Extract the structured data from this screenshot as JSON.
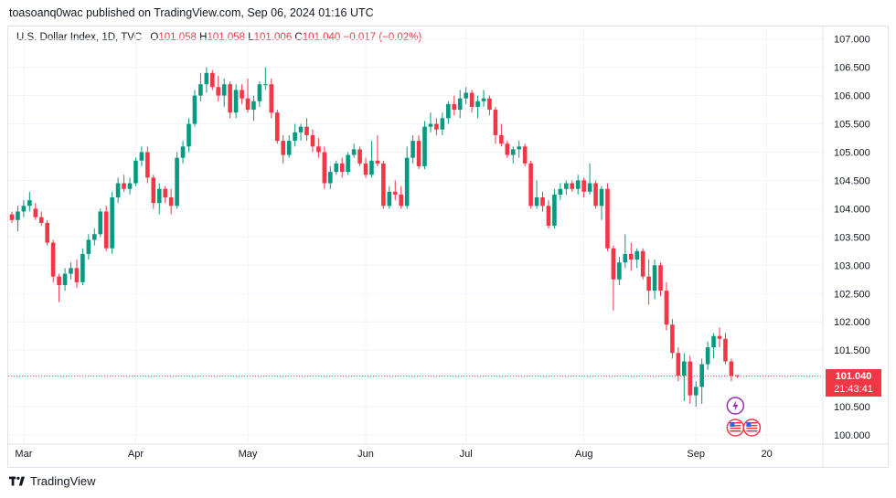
{
  "header": {
    "published": "toasoanq0wac published on TradingView.com, Sep 06, 2024 01:16 UTC"
  },
  "legend": {
    "symbol": "U.S. Dollar Index, 1D, TVC",
    "o_label": "O",
    "o": "101.058",
    "h_label": "H",
    "h": "101.058",
    "l_label": "L",
    "l": "101.006",
    "c_label": "C",
    "c": "101.040",
    "change": "−0.017 (−0.02%)"
  },
  "price_tag": {
    "price": "101.040",
    "countdown": "21:43:41"
  },
  "footer": {
    "brand": "TradingView"
  },
  "colors": {
    "up": "#089981",
    "down": "#f23645",
    "grid": "#f0f3fa",
    "text": "#131722"
  },
  "chart_data": {
    "type": "candlestick",
    "title": "U.S. Dollar Index, 1D, TVC",
    "ylim": [
      99.85,
      107.25
    ],
    "y_ticks": [
      "107.000",
      "106.500",
      "106.000",
      "105.500",
      "105.000",
      "104.500",
      "104.000",
      "103.500",
      "103.000",
      "102.500",
      "102.000",
      "101.500",
      "101.000",
      "100.500",
      "100.000"
    ],
    "x_ticks": [
      {
        "label": "Mar",
        "index": 2
      },
      {
        "label": "Apr",
        "index": 21
      },
      {
        "label": "May",
        "index": 40
      },
      {
        "label": "Jun",
        "index": 60
      },
      {
        "label": "Jul",
        "index": 77
      },
      {
        "label": "Aug",
        "index": 97
      },
      {
        "label": "Sep",
        "index": 116
      },
      {
        "label": "20",
        "index": 128
      }
    ],
    "last_price": 101.04,
    "candles": [
      [
        103.9,
        103.95,
        103.75,
        103.8
      ],
      [
        103.8,
        104.05,
        103.6,
        103.95
      ],
      [
        103.95,
        104.15,
        103.85,
        104.05
      ],
      [
        104.05,
        104.3,
        103.95,
        104.15
      ],
      [
        104.0,
        104.1,
        103.8,
        103.85
      ],
      [
        103.85,
        103.95,
        103.7,
        103.75
      ],
      [
        103.75,
        103.8,
        103.35,
        103.4
      ],
      [
        103.4,
        103.45,
        102.7,
        102.8
      ],
      [
        102.8,
        102.85,
        102.35,
        102.65
      ],
      [
        102.65,
        102.95,
        102.55,
        102.85
      ],
      [
        102.85,
        103.05,
        102.75,
        102.95
      ],
      [
        102.95,
        103.1,
        102.6,
        102.7
      ],
      [
        102.7,
        103.3,
        102.65,
        103.2
      ],
      [
        103.2,
        103.55,
        103.1,
        103.45
      ],
      [
        103.45,
        103.65,
        103.35,
        103.55
      ],
      [
        103.55,
        104.0,
        103.5,
        103.95
      ],
      [
        103.95,
        104.05,
        103.25,
        103.3
      ],
      [
        103.3,
        104.3,
        103.2,
        104.2
      ],
      [
        104.2,
        104.55,
        104.1,
        104.45
      ],
      [
        104.45,
        104.6,
        104.3,
        104.35
      ],
      [
        104.35,
        104.55,
        104.25,
        104.45
      ],
      [
        104.45,
        104.9,
        104.4,
        104.85
      ],
      [
        104.85,
        105.1,
        104.75,
        105.0
      ],
      [
        105.0,
        105.1,
        104.45,
        104.55
      ],
      [
        104.55,
        104.6,
        104.0,
        104.1
      ],
      [
        104.1,
        104.45,
        103.9,
        104.35
      ],
      [
        104.35,
        104.4,
        104.1,
        104.2
      ],
      [
        104.2,
        104.35,
        103.9,
        104.05
      ],
      [
        104.05,
        105.0,
        104.0,
        104.9
      ],
      [
        104.9,
        105.2,
        104.8,
        105.1
      ],
      [
        105.1,
        105.6,
        105.0,
        105.5
      ],
      [
        105.5,
        106.1,
        105.45,
        106.0
      ],
      [
        106.0,
        106.4,
        105.9,
        106.2
      ],
      [
        106.2,
        106.5,
        106.05,
        106.4
      ],
      [
        106.4,
        106.45,
        106.1,
        106.15
      ],
      [
        106.15,
        106.35,
        105.9,
        106.0
      ],
      [
        106.0,
        106.3,
        105.8,
        106.2
      ],
      [
        106.2,
        106.25,
        105.6,
        105.7
      ],
      [
        105.7,
        106.2,
        105.6,
        106.1
      ],
      [
        106.1,
        106.2,
        105.85,
        105.95
      ],
      [
        105.95,
        106.3,
        105.7,
        105.75
      ],
      [
        105.75,
        106.0,
        105.55,
        105.9
      ],
      [
        105.9,
        106.25,
        105.8,
        106.2
      ],
      [
        106.2,
        106.5,
        106.1,
        106.2
      ],
      [
        106.2,
        106.3,
        105.6,
        105.7
      ],
      [
        105.7,
        105.75,
        105.15,
        105.2
      ],
      [
        105.2,
        105.3,
        104.8,
        104.95
      ],
      [
        104.95,
        105.3,
        104.9,
        105.2
      ],
      [
        105.2,
        105.5,
        105.1,
        105.35
      ],
      [
        105.35,
        105.5,
        105.2,
        105.45
      ],
      [
        105.45,
        105.6,
        105.2,
        105.3
      ],
      [
        105.3,
        105.4,
        105.0,
        105.1
      ],
      [
        105.1,
        105.25,
        104.9,
        105.0
      ],
      [
        105.0,
        105.1,
        104.35,
        104.45
      ],
      [
        104.45,
        104.75,
        104.35,
        104.65
      ],
      [
        104.65,
        104.85,
        104.6,
        104.8
      ],
      [
        104.8,
        104.9,
        104.55,
        104.65
      ],
      [
        104.65,
        105.0,
        104.6,
        104.95
      ],
      [
        104.95,
        105.15,
        104.9,
        105.05
      ],
      [
        105.05,
        105.1,
        104.75,
        104.8
      ],
      [
        104.8,
        104.9,
        104.55,
        104.6
      ],
      [
        104.6,
        105.2,
        104.55,
        104.85
      ],
      [
        104.85,
        105.3,
        104.75,
        104.8
      ],
      [
        104.8,
        104.85,
        104.0,
        104.05
      ],
      [
        104.05,
        104.4,
        104.0,
        104.3
      ],
      [
        104.3,
        104.5,
        104.15,
        104.25
      ],
      [
        104.25,
        104.4,
        104.0,
        104.05
      ],
      [
        104.05,
        105.1,
        104.0,
        104.9
      ],
      [
        104.9,
        105.3,
        104.8,
        105.2
      ],
      [
        105.2,
        105.3,
        104.7,
        104.75
      ],
      [
        104.75,
        105.55,
        104.7,
        105.45
      ],
      [
        105.45,
        105.7,
        105.35,
        105.5
      ],
      [
        105.5,
        105.6,
        105.3,
        105.4
      ],
      [
        105.4,
        105.7,
        105.3,
        105.6
      ],
      [
        105.6,
        105.9,
        105.5,
        105.85
      ],
      [
        105.85,
        106.0,
        105.65,
        105.75
      ],
      [
        105.75,
        106.1,
        105.6,
        105.95
      ],
      [
        105.95,
        106.15,
        105.85,
        106.05
      ],
      [
        106.05,
        106.1,
        105.7,
        105.8
      ],
      [
        105.8,
        106.0,
        105.6,
        105.9
      ],
      [
        105.9,
        106.1,
        105.8,
        105.95
      ],
      [
        105.95,
        106.0,
        105.65,
        105.75
      ],
      [
        105.75,
        105.8,
        105.15,
        105.3
      ],
      [
        105.3,
        105.5,
        105.1,
        105.15
      ],
      [
        105.15,
        105.2,
        104.9,
        104.95
      ],
      [
        104.95,
        105.1,
        104.8,
        105.05
      ],
      [
        105.05,
        105.2,
        104.9,
        105.1
      ],
      [
        105.1,
        105.15,
        104.75,
        104.8
      ],
      [
        104.8,
        104.85,
        104.0,
        104.05
      ],
      [
        104.05,
        104.5,
        104.0,
        104.2
      ],
      [
        104.2,
        104.3,
        103.95,
        104.05
      ],
      [
        104.05,
        104.15,
        103.65,
        103.7
      ],
      [
        103.7,
        104.35,
        103.65,
        104.25
      ],
      [
        104.25,
        104.45,
        104.15,
        104.35
      ],
      [
        104.35,
        104.5,
        104.25,
        104.45
      ],
      [
        104.45,
        104.5,
        104.3,
        104.35
      ],
      [
        104.35,
        104.6,
        104.25,
        104.5
      ],
      [
        104.5,
        104.55,
        104.2,
        104.3
      ],
      [
        104.3,
        104.8,
        104.25,
        104.45
      ],
      [
        104.45,
        104.5,
        104.0,
        104.05
      ],
      [
        104.05,
        104.4,
        103.8,
        104.35
      ],
      [
        104.35,
        104.45,
        103.25,
        103.3
      ],
      [
        103.3,
        103.35,
        102.2,
        102.75
      ],
      [
        102.75,
        103.15,
        102.65,
        103.05
      ],
      [
        103.05,
        103.55,
        102.95,
        103.2
      ],
      [
        103.2,
        103.4,
        102.9,
        103.1
      ],
      [
        103.1,
        103.3,
        102.95,
        103.25
      ],
      [
        103.25,
        103.3,
        102.75,
        102.8
      ],
      [
        102.8,
        103.1,
        102.3,
        102.55
      ],
      [
        102.55,
        103.1,
        102.4,
        103.0
      ],
      [
        103.0,
        103.05,
        102.45,
        102.55
      ],
      [
        102.55,
        102.7,
        101.85,
        101.95
      ],
      [
        101.95,
        102.05,
        101.35,
        101.45
      ],
      [
        101.45,
        101.55,
        100.95,
        101.05
      ],
      [
        101.05,
        101.45,
        100.6,
        101.3
      ],
      [
        101.3,
        101.4,
        100.55,
        100.7
      ],
      [
        100.7,
        100.95,
        100.5,
        100.85
      ],
      [
        100.85,
        101.35,
        100.55,
        101.25
      ],
      [
        101.25,
        101.65,
        101.15,
        101.55
      ],
      [
        101.55,
        101.8,
        101.35,
        101.75
      ],
      [
        101.75,
        101.9,
        101.55,
        101.7
      ],
      [
        101.7,
        101.8,
        101.25,
        101.3
      ],
      [
        101.3,
        101.35,
        100.95,
        101.05
      ],
      [
        101.058,
        101.058,
        101.006,
        101.04
      ]
    ]
  }
}
